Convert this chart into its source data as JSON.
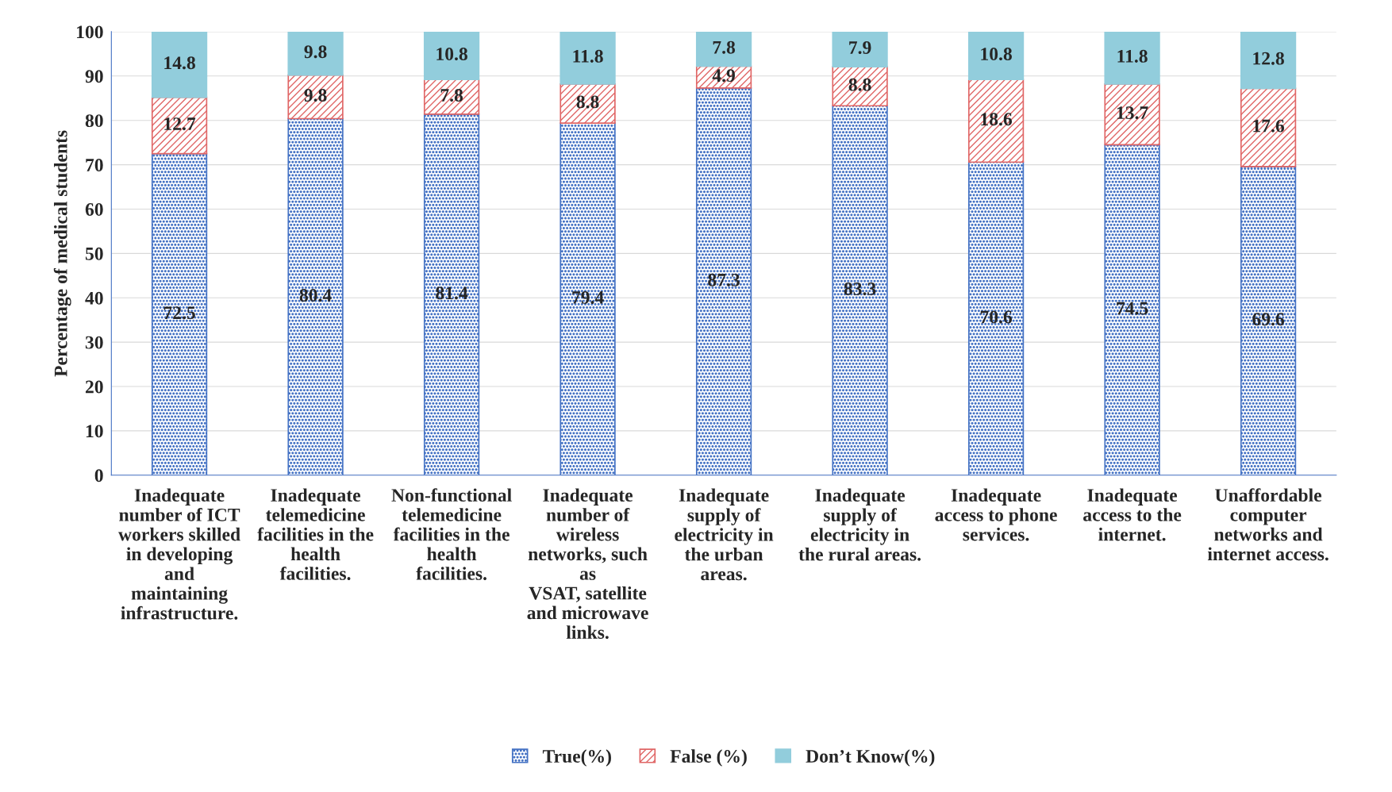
{
  "chart_data": {
    "type": "bar",
    "stacked": true,
    "ylabel": "Percentage of medical students",
    "categories": [
      "Inadequate\nnumber of ICT\nworkers skilled\nin developing\nand\nmaintaining\ninfrastructure.",
      "Inadequate\ntelemedicine\nfacilities in the\nhealth\nfacilities.",
      "Non-functional\ntelemedicine\nfacilities in the\nhealth\nfacilities.",
      "Inadequate\nnumber of\nwireless\nnetworks, such\nas\nVSAT, satellite\nand microwave\nlinks.",
      "Inadequate\nsupply of\nelectricity in\nthe urban\nareas.",
      "Inadequate\nsupply of\nelectricity in\nthe rural areas.",
      "Inadequate\naccess to phone\nservices.",
      "Inadequate\naccess to the\ninternet.",
      "Unaffordable\ncomputer\nnetworks and\ninternet access."
    ],
    "series": [
      {
        "name": "True(%)",
        "color": "#4472c4",
        "values": [
          72.5,
          80.4,
          81.4,
          79.4,
          87.3,
          83.3,
          70.6,
          74.5,
          69.6
        ]
      },
      {
        "name": "False (%)",
        "color": "#e06666",
        "values": [
          12.7,
          9.8,
          7.8,
          8.8,
          4.9,
          8.8,
          18.6,
          13.7,
          17.6
        ]
      },
      {
        "name": "Don’t Know(%)",
        "color": "#92cddc",
        "values": [
          14.8,
          9.8,
          10.8,
          11.8,
          7.8,
          7.9,
          10.8,
          11.8,
          12.8
        ]
      }
    ],
    "ylim": [
      0,
      100
    ],
    "yticks": [
      0,
      10,
      20,
      30,
      40,
      50,
      60,
      70,
      80,
      90,
      100
    ],
    "grid": "y",
    "legend": "bottom",
    "data_labels": true
  }
}
